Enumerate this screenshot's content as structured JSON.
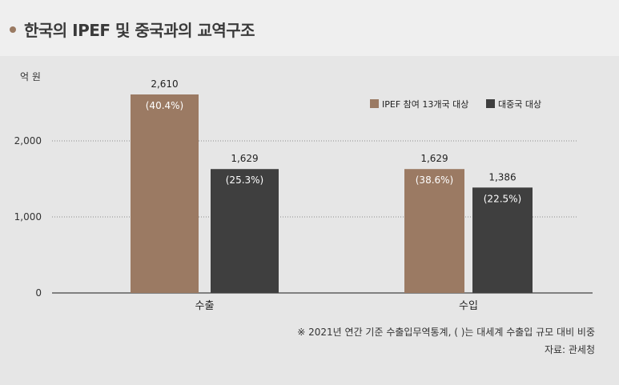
{
  "page": {
    "title": "한국의 IPEF 및 중국과의 교역구조"
  },
  "chart_data": {
    "type": "bar",
    "unit_label": "억 원",
    "categories": [
      "수출",
      "수입"
    ],
    "series": [
      {
        "name": "IPEF 참여 13개국 대상",
        "color": "#9b7a63",
        "values": [
          2610,
          1629
        ],
        "share_labels": [
          "(40.4%)",
          "(38.6%)"
        ]
      },
      {
        "name": "대중국 대상",
        "color": "#3f3f3f",
        "values": [
          1629,
          1386
        ],
        "share_labels": [
          "(25.3%)",
          "(22.5%)"
        ]
      }
    ],
    "value_labels": [
      [
        "2,610",
        "1,629"
      ],
      [
        "1,629",
        "1,386"
      ]
    ],
    "y_ticks": [
      {
        "value": 0,
        "label": "0"
      },
      {
        "value": 1000,
        "label": "1,000"
      },
      {
        "value": 2000,
        "label": "2,000"
      }
    ],
    "ylim": [
      0,
      2610
    ],
    "grid": true,
    "legend_position": "top-right"
  },
  "footnote": "※ 2021년 연간 기준 수출입무역통계, (   )는 대세계 수출입 규모 대비 비중",
  "source": "자료: 관세청"
}
